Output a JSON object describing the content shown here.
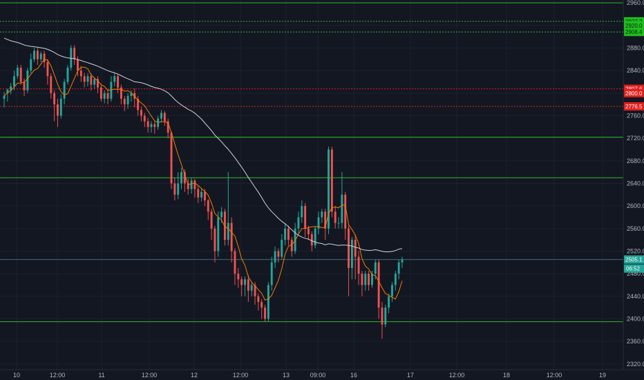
{
  "chart_data": {
    "type": "candlestick",
    "ylim": [
      2310,
      2965
    ],
    "y_ticks": [
      2320.0,
      2360.0,
      2400.0,
      2440.0,
      2480.0,
      2520.0,
      2560.0,
      2600.0,
      2640.0,
      2680.0,
      2720.0,
      2760.0,
      2800.0,
      2840.0,
      2880.0,
      2920.0,
      2960.0
    ],
    "y_tick_labels": [
      "2320.0",
      "2360.0",
      "2400.0",
      "2440.0",
      "2480.0",
      "2520.0",
      "2560.0",
      "2600.0",
      "2640.0",
      "2680.0",
      "2720.0",
      "2760.0",
      "2800.0",
      "2840.0",
      "2880.0",
      "2920.0",
      "2960.0"
    ],
    "x_tick_labels": [
      "10",
      "12:00",
      "11",
      "12:00",
      "12",
      "12:00",
      "13",
      "09:00",
      "16",
      "17",
      "12:00",
      "18",
      "12:00",
      "19"
    ],
    "colors": {
      "up": "#26a69a",
      "down": "#ef5350",
      "level_green": "#2eb82e",
      "level_red": "#e0201e",
      "ma_slow": "#d1d4dc",
      "ma_fast": "#f57c00",
      "price_line": "#3a6b7a",
      "background": "#131722"
    },
    "horizontal_levels": [
      {
        "price": 2960.0,
        "color": "green",
        "style": "solid"
      },
      {
        "price": 2927.2,
        "color": "green",
        "style": "dotted",
        "label": "2927.2"
      },
      {
        "price": 2920.0,
        "color": "green",
        "style": "none",
        "label": "2920.0"
      },
      {
        "price": 2908.4,
        "color": "green",
        "style": "dotted",
        "label": "2908.4"
      },
      {
        "price": 2807.6,
        "color": "red",
        "style": "dotted",
        "label": "2807.6"
      },
      {
        "price": 2800.0,
        "color": "red",
        "style": "none",
        "label": "2800.0"
      },
      {
        "price": 2776.5,
        "color": "red",
        "style": "dotted",
        "label": "2776.5"
      },
      {
        "price": 2722.0,
        "color": "green",
        "style": "solid"
      },
      {
        "price": 2650.0,
        "color": "green",
        "style": "solid"
      },
      {
        "price": 2395.0,
        "color": "green",
        "style": "solid"
      }
    ],
    "current_price": {
      "price": 2505.1,
      "label": "2505.1",
      "countdown": "06:52"
    },
    "candles": [
      [
        2790,
        2795,
        2775,
        2802
      ],
      [
        2800,
        2806,
        2785,
        2808
      ],
      [
        2805,
        2812,
        2798,
        2818
      ],
      [
        2812,
        2830,
        2805,
        2840
      ],
      [
        2830,
        2845,
        2825,
        2850
      ],
      [
        2845,
        2820,
        2815,
        2850
      ],
      [
        2820,
        2805,
        2795,
        2826
      ],
      [
        2805,
        2840,
        2800,
        2845
      ],
      [
        2840,
        2860,
        2835,
        2870
      ],
      [
        2860,
        2875,
        2855,
        2880
      ],
      [
        2875,
        2860,
        2850,
        2880
      ],
      [
        2860,
        2870,
        2855,
        2874
      ],
      [
        2870,
        2855,
        2845,
        2875
      ],
      [
        2855,
        2830,
        2815,
        2860
      ],
      [
        2830,
        2800,
        2790,
        2835
      ],
      [
        2800,
        2780,
        2750,
        2805
      ],
      [
        2780,
        2760,
        2740,
        2790
      ],
      [
        2760,
        2790,
        2755,
        2798
      ],
      [
        2790,
        2820,
        2780,
        2825
      ],
      [
        2820,
        2845,
        2815,
        2850
      ],
      [
        2845,
        2880,
        2840,
        2885
      ],
      [
        2880,
        2860,
        2850,
        2885
      ],
      [
        2860,
        2840,
        2830,
        2865
      ],
      [
        2840,
        2830,
        2820,
        2848
      ],
      [
        2830,
        2820,
        2810,
        2836
      ],
      [
        2820,
        2830,
        2812,
        2835
      ],
      [
        2830,
        2815,
        2805,
        2835
      ],
      [
        2815,
        2825,
        2808,
        2828
      ],
      [
        2825,
        2810,
        2800,
        2830
      ],
      [
        2810,
        2790,
        2785,
        2815
      ],
      [
        2790,
        2800,
        2782,
        2805
      ],
      [
        2800,
        2790,
        2780,
        2806
      ],
      [
        2790,
        2820,
        2785,
        2830
      ],
      [
        2820,
        2830,
        2812,
        2835
      ],
      [
        2830,
        2810,
        2800,
        2834
      ],
      [
        2810,
        2790,
        2780,
        2815
      ],
      [
        2790,
        2780,
        2768,
        2795
      ],
      [
        2780,
        2795,
        2772,
        2800
      ],
      [
        2795,
        2800,
        2785,
        2805
      ],
      [
        2800,
        2790,
        2775,
        2808
      ],
      [
        2790,
        2770,
        2760,
        2795
      ],
      [
        2770,
        2760,
        2750,
        2775
      ],
      [
        2760,
        2750,
        2740,
        2765
      ],
      [
        2750,
        2740,
        2730,
        2756
      ],
      [
        2740,
        2745,
        2730,
        2750
      ],
      [
        2745,
        2740,
        2728,
        2750
      ],
      [
        2740,
        2755,
        2735,
        2760
      ],
      [
        2755,
        2765,
        2748,
        2770
      ],
      [
        2765,
        2750,
        2742,
        2768
      ],
      [
        2750,
        2730,
        2720,
        2755
      ],
      [
        2730,
        2640,
        2630,
        2732
      ],
      [
        2640,
        2620,
        2610,
        2650
      ],
      [
        2620,
        2640,
        2612,
        2660
      ],
      [
        2640,
        2660,
        2630,
        2668
      ],
      [
        2660,
        2640,
        2625,
        2665
      ],
      [
        2640,
        2630,
        2620,
        2648
      ],
      [
        2630,
        2645,
        2622,
        2650
      ],
      [
        2645,
        2630,
        2615,
        2648
      ],
      [
        2630,
        2615,
        2605,
        2636
      ],
      [
        2615,
        2625,
        2608,
        2630
      ],
      [
        2625,
        2610,
        2600,
        2630
      ],
      [
        2610,
        2590,
        2575,
        2612
      ],
      [
        2590,
        2560,
        2540,
        2595
      ],
      [
        2560,
        2520,
        2500,
        2565
      ],
      [
        2520,
        2580,
        2510,
        2590
      ],
      [
        2580,
        2590,
        2570,
        2598
      ],
      [
        2590,
        2540,
        2530,
        2595
      ],
      [
        2540,
        2570,
        2530,
        2660
      ],
      [
        2570,
        2520,
        2500,
        2580
      ],
      [
        2520,
        2480,
        2460,
        2525
      ],
      [
        2480,
        2470,
        2455,
        2490
      ],
      [
        2470,
        2460,
        2440,
        2475
      ],
      [
        2460,
        2470,
        2440,
        2475
      ],
      [
        2470,
        2450,
        2430,
        2478
      ],
      [
        2450,
        2460,
        2440,
        2465
      ],
      [
        2460,
        2440,
        2425,
        2465
      ],
      [
        2440,
        2430,
        2415,
        2445
      ],
      [
        2430,
        2420,
        2400,
        2435
      ],
      [
        2420,
        2400,
        2395,
        2425
      ],
      [
        2400,
        2460,
        2395,
        2465
      ],
      [
        2460,
        2500,
        2450,
        2510
      ],
      [
        2500,
        2520,
        2490,
        2528
      ],
      [
        2520,
        2510,
        2500,
        2525
      ],
      [
        2510,
        2540,
        2505,
        2550
      ],
      [
        2540,
        2560,
        2530,
        2570
      ],
      [
        2560,
        2540,
        2530,
        2565
      ],
      [
        2540,
        2520,
        2510,
        2545
      ],
      [
        2520,
        2560,
        2515,
        2570
      ],
      [
        2560,
        2580,
        2550,
        2590
      ],
      [
        2580,
        2600,
        2570,
        2610
      ],
      [
        2600,
        2560,
        2545,
        2605
      ],
      [
        2560,
        2550,
        2540,
        2565
      ],
      [
        2550,
        2530,
        2520,
        2555
      ],
      [
        2530,
        2560,
        2525,
        2565
      ],
      [
        2560,
        2580,
        2550,
        2590
      ],
      [
        2580,
        2590,
        2570,
        2595
      ],
      [
        2590,
        2560,
        2540,
        2595
      ],
      [
        2560,
        2700,
        2550,
        2705
      ],
      [
        2700,
        2590,
        2580,
        2705
      ],
      [
        2590,
        2570,
        2560,
        2600
      ],
      [
        2570,
        2570,
        2560,
        2580
      ],
      [
        2570,
        2620,
        2560,
        2660
      ],
      [
        2620,
        2560,
        2540,
        2625
      ],
      [
        2560,
        2490,
        2440,
        2565
      ],
      [
        2490,
        2540,
        2470,
        2545
      ],
      [
        2540,
        2510,
        2470,
        2550
      ],
      [
        2510,
        2480,
        2460,
        2520
      ],
      [
        2480,
        2460,
        2440,
        2485
      ],
      [
        2460,
        2480,
        2450,
        2485
      ],
      [
        2480,
        2460,
        2450,
        2485
      ],
      [
        2460,
        2480,
        2455,
        2485
      ],
      [
        2480,
        2500,
        2470,
        2505
      ],
      [
        2500,
        2420,
        2400,
        2505
      ],
      [
        2420,
        2390,
        2365,
        2430
      ],
      [
        2390,
        2420,
        2385,
        2425
      ],
      [
        2420,
        2440,
        2410,
        2445
      ],
      [
        2440,
        2460,
        2430,
        2465
      ],
      [
        2460,
        2480,
        2450,
        2485
      ],
      [
        2480,
        2500,
        2470,
        2505
      ],
      [
        2500,
        2505,
        2490,
        2510
      ]
    ]
  }
}
